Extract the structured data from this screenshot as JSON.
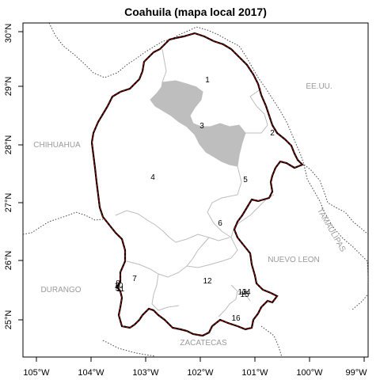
{
  "map": {
    "title": "Coahuila (mapa local 2017)",
    "x_ticks": [
      "105°W",
      "104°W",
      "103°W",
      "102°W",
      "101°W",
      "100°W",
      "99°W"
    ],
    "y_ticks": [
      "25°N",
      "26°N",
      "27°N",
      "28°N",
      "29°N",
      "30°N"
    ],
    "neighbors": {
      "chihuahua": "CHIHUAHUA",
      "eeuu": "EE.UU.",
      "durango": "DURANGO",
      "nuevo_leon": "NUEVO LEON",
      "tamaulipas": "TAMAULIPAS",
      "zacatecas": "ZACATECAS"
    },
    "districts": {
      "d1": "1",
      "d2": "2",
      "d3": "3",
      "d4": "4",
      "d5": "5",
      "d6": "6",
      "d7": "7",
      "d8": "8",
      "d9": "9",
      "d10": "10",
      "d11": "11",
      "d12": "12",
      "d13": "13",
      "d14": "14",
      "d15": "15",
      "d16": "16"
    },
    "colors": {
      "state_border": "#b30000",
      "district_lines": "#bdbdbd",
      "gray_region": "#bebebe",
      "neighbor_labels": "#9a9a9a"
    }
  }
}
